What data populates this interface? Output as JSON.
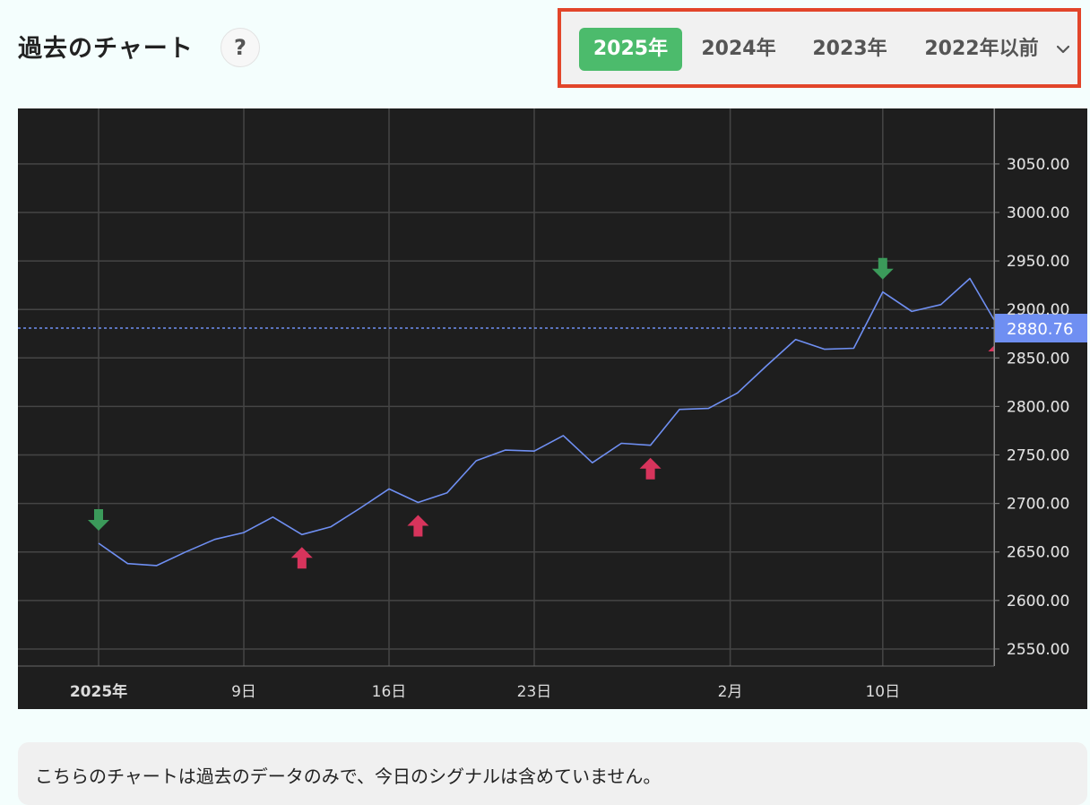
{
  "header": {
    "title": "過去のチャート",
    "help_label": "?"
  },
  "year_tabs": {
    "items": [
      {
        "label": "2025年",
        "active": true
      },
      {
        "label": "2024年",
        "active": false
      },
      {
        "label": "2023年",
        "active": false
      },
      {
        "label": "2022年以前",
        "active": false
      }
    ]
  },
  "colors": {
    "active_tab": "#4cbb6c",
    "highlight_border": "#e2452a",
    "line": "#6f8ff2",
    "buy_arrow": "#d7345c",
    "sell_arrow": "#3b9a5a",
    "current_price_label": "#6f8ff2"
  },
  "chart_data": {
    "type": "line",
    "x_tick_labels": [
      "2025年",
      "9日",
      "16日",
      "23日",
      "2月",
      "10日"
    ],
    "y_tick_labels": [
      "2550.00",
      "2600.00",
      "2650.00",
      "2700.00",
      "2750.00",
      "2800.00",
      "2850.00",
      "2900.00",
      "2950.00",
      "3000.00",
      "3050.00"
    ],
    "ylim": [
      2525,
      3085
    ],
    "grid": true,
    "series": [
      {
        "x": [
          "2025-01-02",
          "2025-01-03",
          "2025-01-06",
          "2025-01-07",
          "2025-01-08",
          "2025-01-09",
          "2025-01-10",
          "2025-01-13",
          "2025-01-14",
          "2025-01-15",
          "2025-01-16",
          "2025-01-17",
          "2025-01-20",
          "2025-01-21",
          "2025-01-22",
          "2025-01-23",
          "2025-01-24",
          "2025-01-27",
          "2025-01-28",
          "2025-01-29",
          "2025-01-30",
          "2025-01-31",
          "2025-02-03",
          "2025-02-04",
          "2025-02-05",
          "2025-02-06",
          "2025-02-07",
          "2025-02-10",
          "2025-02-11",
          "2025-02-12",
          "2025-02-13",
          "2025-02-14"
        ],
        "values": [
          2659,
          2638,
          2636,
          2650,
          2663,
          2670,
          2686,
          2668,
          2676,
          2695,
          2715,
          2701,
          2711,
          2744,
          2755,
          2754,
          2770,
          2742,
          2762,
          2760,
          2797,
          2798,
          2814,
          2842,
          2869,
          2859,
          2860,
          2918,
          2898,
          2905,
          2932,
          2880.76
        ]
      }
    ],
    "signals": [
      {
        "type": "sell",
        "date": "2025-01-02"
      },
      {
        "type": "buy",
        "date": "2025-01-13"
      },
      {
        "type": "buy",
        "date": "2025-01-17"
      },
      {
        "type": "buy",
        "date": "2025-01-29"
      },
      {
        "type": "sell",
        "date": "2025-02-10"
      },
      {
        "type": "buy",
        "date": "2025-02-14"
      }
    ],
    "current_price": {
      "value": 2880.76,
      "label": "2880.76"
    }
  },
  "footer": {
    "note": "こちらのチャートは過去のデータのみで、今日のシグナルは含めていません。"
  }
}
